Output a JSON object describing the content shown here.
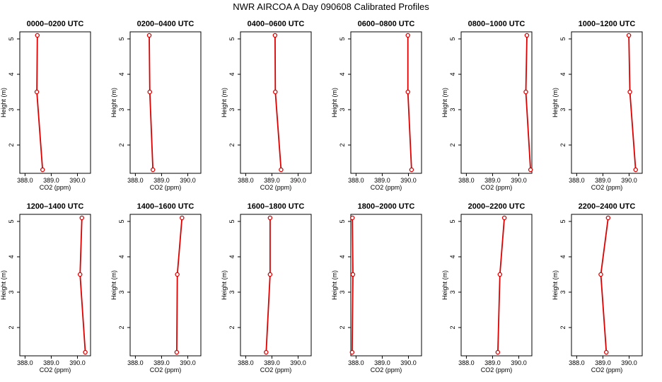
{
  "title": "NWR AIRCOA A  Day 090608  Calibrated Profiles",
  "colors": {
    "series": "#dd0000",
    "axis": "#000000"
  },
  "chart_data": [
    {
      "type": "line",
      "title": "0000–0200 UTC",
      "xlabel": "CO2 (ppm)",
      "ylabel": "Height (m)",
      "xlim": [
        387.8,
        390.5
      ],
      "ylim": [
        1.2,
        5.2
      ],
      "xticks": [
        "388.0",
        "389.0",
        "390.0"
      ],
      "yticks": [
        "2",
        "3",
        "4",
        "5"
      ],
      "points": [
        {
          "x": 388.67,
          "y": 1.3
        },
        {
          "x": 388.45,
          "y": 3.5
        },
        {
          "x": 388.47,
          "y": 5.1
        }
      ]
    },
    {
      "type": "line",
      "title": "0200–0400 UTC",
      "xlabel": "CO2 (ppm)",
      "ylabel": "Height (m)",
      "xlim": [
        387.8,
        390.5
      ],
      "ylim": [
        1.2,
        5.2
      ],
      "xticks": [
        "388.0",
        "389.0",
        "390.0"
      ],
      "yticks": [
        "2",
        "3",
        "4",
        "5"
      ],
      "points": [
        {
          "x": 388.67,
          "y": 1.3
        },
        {
          "x": 388.55,
          "y": 3.5
        },
        {
          "x": 388.53,
          "y": 5.1
        }
      ]
    },
    {
      "type": "line",
      "title": "0400–0600 UTC",
      "xlabel": "CO2 (ppm)",
      "ylabel": "Height (m)",
      "xlim": [
        387.8,
        390.5
      ],
      "ylim": [
        1.2,
        5.2
      ],
      "xticks": [
        "388.0",
        "389.0",
        "390.0"
      ],
      "yticks": [
        "2",
        "3",
        "4",
        "5"
      ],
      "points": [
        {
          "x": 389.35,
          "y": 1.3
        },
        {
          "x": 389.13,
          "y": 3.5
        },
        {
          "x": 389.12,
          "y": 5.1
        }
      ]
    },
    {
      "type": "line",
      "title": "0600–0800 UTC",
      "xlabel": "CO2 (ppm)",
      "ylabel": "Height (m)",
      "xlim": [
        387.8,
        390.5
      ],
      "ylim": [
        1.2,
        5.2
      ],
      "xticks": [
        "388.0",
        "389.0",
        "390.0"
      ],
      "yticks": [
        "2",
        "3",
        "4",
        "5"
      ],
      "points": [
        {
          "x": 390.12,
          "y": 1.3
        },
        {
          "x": 389.98,
          "y": 3.5
        },
        {
          "x": 389.98,
          "y": 5.1
        }
      ]
    },
    {
      "type": "line",
      "title": "0800–1000 UTC",
      "xlabel": "CO2 (ppm)",
      "ylabel": "Height (m)",
      "xlim": [
        387.8,
        390.5
      ],
      "ylim": [
        1.2,
        5.2
      ],
      "xticks": [
        "388.0",
        "389.0",
        "390.0"
      ],
      "yticks": [
        "2",
        "3",
        "4",
        "5"
      ],
      "points": [
        {
          "x": 390.45,
          "y": 1.3
        },
        {
          "x": 390.27,
          "y": 3.5
        },
        {
          "x": 390.31,
          "y": 5.1
        }
      ]
    },
    {
      "type": "line",
      "title": "1000–1200 UTC",
      "xlabel": "CO2 (ppm)",
      "ylabel": "Height (m)",
      "xlim": [
        387.8,
        390.5
      ],
      "ylim": [
        1.2,
        5.2
      ],
      "xticks": [
        "388.0",
        "389.0",
        "390.0"
      ],
      "yticks": [
        "2",
        "3",
        "4",
        "5"
      ],
      "points": [
        {
          "x": 390.25,
          "y": 1.3
        },
        {
          "x": 390.03,
          "y": 3.5
        },
        {
          "x": 389.99,
          "y": 5.1
        }
      ]
    },
    {
      "type": "line",
      "title": "1200–1400 UTC",
      "xlabel": "CO2 (ppm)",
      "ylabel": "Height (m)",
      "xlim": [
        387.8,
        390.5
      ],
      "ylim": [
        1.2,
        5.2
      ],
      "xticks": [
        "388.0",
        "389.0",
        "390.0"
      ],
      "yticks": [
        "2",
        "3",
        "4",
        "5"
      ],
      "points": [
        {
          "x": 390.3,
          "y": 1.3
        },
        {
          "x": 390.1,
          "y": 3.5
        },
        {
          "x": 390.17,
          "y": 5.1
        }
      ]
    },
    {
      "type": "line",
      "title": "1400–1600 UTC",
      "xlabel": "CO2 (ppm)",
      "ylabel": "Height (m)",
      "xlim": [
        387.8,
        390.5
      ],
      "ylim": [
        1.2,
        5.2
      ],
      "xticks": [
        "388.0",
        "389.0",
        "390.0"
      ],
      "yticks": [
        "2",
        "3",
        "4",
        "5"
      ],
      "points": [
        {
          "x": 389.58,
          "y": 1.3
        },
        {
          "x": 389.6,
          "y": 3.5
        },
        {
          "x": 389.78,
          "y": 5.1
        }
      ]
    },
    {
      "type": "line",
      "title": "1600–1800 UTC",
      "xlabel": "CO2 (ppm)",
      "ylabel": "Height (m)",
      "xlim": [
        387.8,
        390.5
      ],
      "ylim": [
        1.2,
        5.2
      ],
      "xticks": [
        "388.0",
        "389.0",
        "390.0"
      ],
      "yticks": [
        "2",
        "3",
        "4",
        "5"
      ],
      "points": [
        {
          "x": 388.78,
          "y": 1.3
        },
        {
          "x": 388.93,
          "y": 3.5
        },
        {
          "x": 388.93,
          "y": 5.1
        }
      ]
    },
    {
      "type": "line",
      "title": "1800–2000 UTC",
      "xlabel": "CO2 (ppm)",
      "ylabel": "Height (m)",
      "xlim": [
        387.8,
        390.5
      ],
      "ylim": [
        1.2,
        5.2
      ],
      "xticks": [
        "388.0",
        "389.0",
        "390.0"
      ],
      "yticks": [
        "2",
        "3",
        "4",
        "5"
      ],
      "points": [
        {
          "x": 387.85,
          "y": 1.3
        },
        {
          "x": 387.88,
          "y": 3.5
        },
        {
          "x": 387.86,
          "y": 5.1
        }
      ]
    },
    {
      "type": "line",
      "title": "2000–2200 UTC",
      "xlabel": "CO2 (ppm)",
      "ylabel": "Height (m)",
      "xlim": [
        387.8,
        390.5
      ],
      "ylim": [
        1.2,
        5.2
      ],
      "xticks": [
        "388.0",
        "389.0",
        "390.0"
      ],
      "yticks": [
        "2",
        "3",
        "4",
        "5"
      ],
      "points": [
        {
          "x": 389.2,
          "y": 1.3
        },
        {
          "x": 389.28,
          "y": 3.5
        },
        {
          "x": 389.45,
          "y": 5.1
        }
      ]
    },
    {
      "type": "line",
      "title": "2200–2400 UTC",
      "xlabel": "CO2 (ppm)",
      "ylabel": "Height (m)",
      "xlim": [
        387.8,
        390.5
      ],
      "ylim": [
        1.2,
        5.2
      ],
      "xticks": [
        "388.0",
        "389.0",
        "390.0"
      ],
      "yticks": [
        "2",
        "3",
        "4",
        "5"
      ],
      "points": [
        {
          "x": 389.13,
          "y": 1.3
        },
        {
          "x": 388.92,
          "y": 3.5
        },
        {
          "x": 389.2,
          "y": 5.1
        }
      ]
    }
  ]
}
